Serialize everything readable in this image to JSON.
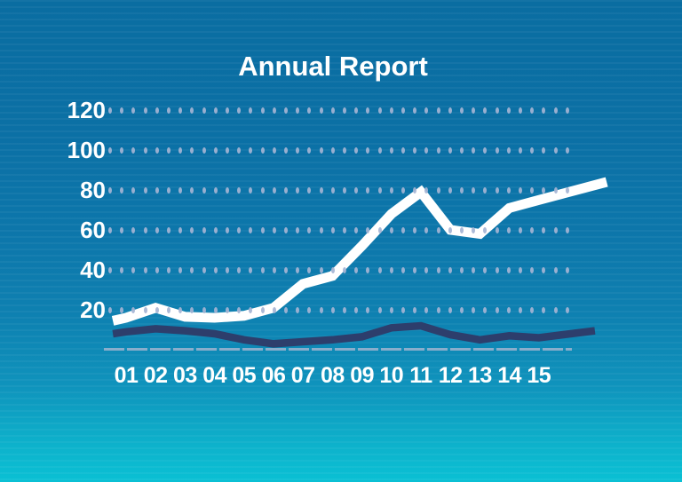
{
  "title": "Annual Report",
  "colors": {
    "background_top": "#0a6da1",
    "background_bottom": "#0ac0d4",
    "text": "#ffffff",
    "grid_dots": "#a5b4d4",
    "axis_line": "#9eb3cf",
    "series_primary": "#ffffff",
    "series_secondary": "#2d3e6c"
  },
  "chart_data": {
    "type": "line",
    "title": "Annual Report",
    "categories": [
      "01",
      "02",
      "03",
      "04",
      "05",
      "06",
      "07",
      "08",
      "09",
      "10",
      "11",
      "12",
      "13",
      "14",
      "15"
    ],
    "xlabel": "",
    "ylabel": "",
    "y_ticks": [
      120,
      100,
      80,
      60,
      40,
      20
    ],
    "ylim": [
      0,
      130
    ],
    "grid": "horizontal dotted rows",
    "legend_position": "none",
    "series": [
      {
        "name": "primary-white-line",
        "color": "#ffffff",
        "stroke_width": 11,
        "values": [
          16,
          21,
          16.5,
          16,
          17,
          21,
          33,
          37,
          52,
          68,
          79,
          60,
          58,
          71,
          75
        ],
        "pre_point": {
          "x": 0.55,
          "value": 14.5
        },
        "post_point": {
          "x": 17.3,
          "value": 84
        }
      },
      {
        "name": "secondary-navy-line",
        "color": "#2d3e6c",
        "stroke_width": 8.5,
        "values": [
          9,
          10.5,
          9.5,
          8,
          5,
          3,
          4,
          5,
          6.5,
          11,
          12,
          7.5,
          5,
          7,
          6
        ],
        "pre_point": {
          "x": 0.55,
          "value": 8
        },
        "post_point": {
          "x": 16.9,
          "value": 9.5
        }
      }
    ]
  }
}
